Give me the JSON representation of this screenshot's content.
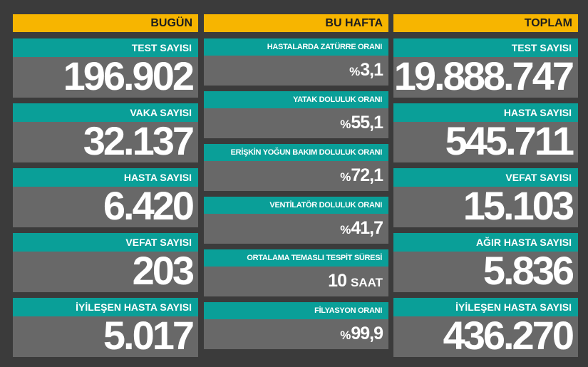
{
  "columns": [
    {
      "title": "BUGÜN",
      "cards": [
        {
          "label": "TEST SAYISI",
          "value": "196.902"
        },
        {
          "label": "VAKA SAYISI",
          "value": "32.137"
        },
        {
          "label": "HASTA SAYISI",
          "value": "6.420"
        },
        {
          "label": "VEFAT SAYISI",
          "value": "203"
        },
        {
          "label": "İYİLEŞEN HASTA SAYISI",
          "value": "5.017"
        }
      ]
    },
    {
      "title": "BU HAFTA",
      "cards": [
        {
          "label": "HASTALARDA ZATÜRRE ORANI",
          "prefix": "%",
          "value": "3,1"
        },
        {
          "label": "YATAK DOLULUK ORANI",
          "prefix": "%",
          "value": "55,1"
        },
        {
          "label": "ERİŞKİN YOĞUN BAKIM DOLULUK ORANI",
          "prefix": "%",
          "value": "72,1"
        },
        {
          "label": "VENTİLATÖR DOLULUK ORANI",
          "prefix": "%",
          "value": "41,7"
        },
        {
          "label": "ORTALAMA TEMASLI TESPİT SÜRESİ",
          "value": "10",
          "suffix": "SAAT"
        },
        {
          "label": "FİLYASYON ORANI",
          "prefix": "%",
          "value": "99,9"
        }
      ]
    },
    {
      "title": "TOPLAM",
      "cards": [
        {
          "label": "TEST SAYISI",
          "value": "19.888.747"
        },
        {
          "label": "HASTA SAYISI",
          "value": "545.711"
        },
        {
          "label": "VEFAT SAYISI",
          "value": "15.103"
        },
        {
          "label": "AĞIR HASTA SAYISI",
          "value": "5.836"
        },
        {
          "label": "İYİLEŞEN HASTA SAYISI",
          "value": "436.270"
        }
      ]
    }
  ]
}
